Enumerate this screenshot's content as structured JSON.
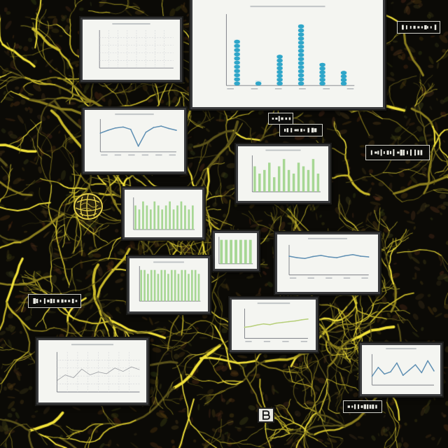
{
  "scene": {
    "background_color": "#0b0a06",
    "vein_colors": [
      "#f2e23a",
      "#c9b92a",
      "#8a7d1e",
      "#5a521a"
    ]
  },
  "colors": {
    "panel_bg": "#f4f5f1",
    "panel_border": "#3a3b3d",
    "bar_green": "#9fd48a",
    "bar_blue": "#2fa6c9",
    "line_blue": "#5e8fb3",
    "line_green": "#b7cf7a",
    "axis": "#7c7f86",
    "text_gray": "#9aa0a6"
  },
  "icons": {
    "sphere": "mesh-sphere-icon",
    "letter_box": "letter-b-icon"
  },
  "chart_data": [
    {
      "type": "bar",
      "categories": [
        "",
        "",
        "",
        "",
        "",
        ""
      ],
      "values": [
        45,
        5,
        30,
        60,
        22,
        14
      ],
      "ylim": [
        0,
        70
      ],
      "grid": false,
      "color": "#2fa6c9"
    },
    {
      "type": "line",
      "x": [
        0,
        1,
        2,
        3,
        4,
        5,
        6,
        7,
        8,
        9,
        10
      ],
      "y": [
        4,
        4.6,
        5.1,
        5.3,
        4.8,
        1.2,
        4.2,
        5.2,
        5.5,
        5.0,
        4.6
      ],
      "ylim": [
        0,
        7
      ],
      "color": "#5e8fb3"
    },
    {
      "type": "bar",
      "categories": [
        "",
        "",
        "",
        "",
        "",
        "",
        "",
        "",
        "",
        "",
        "",
        "",
        "",
        ""
      ],
      "values": [
        7,
        5,
        6,
        8,
        4,
        7,
        9,
        6,
        5,
        8,
        7,
        6,
        9,
        5
      ],
      "ylim": [
        0,
        10
      ],
      "color": "#9fd48a"
    },
    {
      "type": "bar",
      "categories": [
        "",
        "",
        "",
        "",
        "",
        "",
        "",
        "",
        "",
        "",
        "",
        "",
        "",
        "",
        "",
        ""
      ],
      "values": [
        6,
        5,
        7,
        6,
        5,
        7,
        6,
        5,
        6,
        7,
        5,
        6,
        7,
        6,
        5,
        6
      ],
      "ylim": [
        0,
        8
      ],
      "color": "#9fd48a"
    },
    {
      "type": "bar",
      "categories": [
        "",
        "",
        "",
        "",
        "",
        "",
        ""
      ],
      "values": [
        8,
        8,
        8,
        8,
        8,
        8,
        8
      ],
      "ylim": [
        0,
        9
      ],
      "color": "#9fd48a"
    },
    {
      "type": "bar",
      "categories": [
        "",
        "",
        "",
        "",
        "",
        "",
        "",
        "",
        "",
        "",
        "",
        "",
        "",
        "",
        "",
        "",
        "",
        ""
      ],
      "values": [
        8,
        8,
        7,
        8,
        8,
        7,
        8,
        8,
        7,
        8,
        8,
        7,
        8,
        8,
        7,
        8,
        8,
        7
      ],
      "ylim": [
        0,
        9
      ],
      "color": "#9fd48a"
    },
    {
      "type": "line",
      "x": [
        0,
        1,
        2,
        3,
        4,
        5,
        6,
        7,
        8,
        9,
        10
      ],
      "y": [
        5,
        4.6,
        4.4,
        4.9,
        5.2,
        4.8,
        4.6,
        5.1,
        5.4,
        5.0,
        4.8
      ],
      "ylim": [
        0,
        8
      ],
      "color": "#5e8fb3"
    },
    {
      "type": "line",
      "x": [
        0,
        1,
        2,
        3,
        4,
        5,
        6,
        7,
        8,
        9,
        10
      ],
      "y": [
        3,
        3.2,
        3.6,
        3.9,
        3.7,
        4.1,
        4.3,
        4.5,
        4.7,
        5.0,
        5.2
      ],
      "ylim": [
        0,
        8
      ],
      "color": "#b7cf7a"
    },
    {
      "type": "line",
      "x": [
        0,
        1,
        2,
        3,
        4,
        5,
        6,
        7,
        8,
        9,
        10
      ],
      "y": [
        2,
        3,
        2.5,
        4,
        3,
        3.5,
        3.2,
        4.2,
        3.6,
        4.4,
        3.9
      ],
      "ylim": [
        0,
        7
      ],
      "color": "#7c7f86"
    },
    {
      "type": "line",
      "x": [
        0,
        1,
        2,
        3,
        4,
        5,
        6,
        7,
        8,
        9,
        10
      ],
      "y": [
        2,
        4,
        2.5,
        3,
        5,
        2.2,
        3.4,
        4.6,
        2.8,
        5.5,
        3.2
      ],
      "ylim": [
        0,
        7
      ],
      "color": "#5e8fb3"
    }
  ]
}
